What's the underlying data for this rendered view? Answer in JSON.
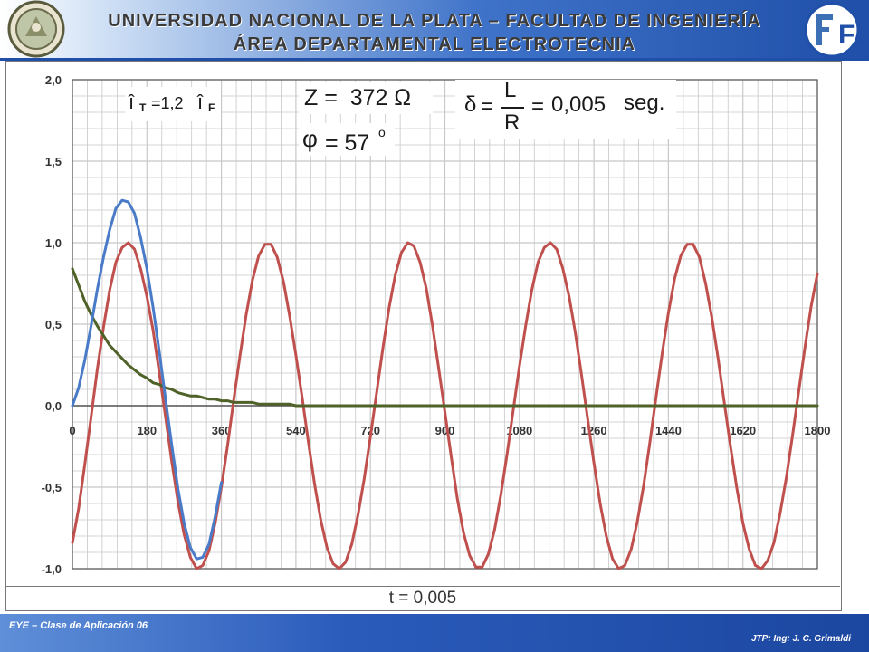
{
  "header": {
    "title_line1": "UNIVERSIDAD NACIONAL DE LA PLATA – FACULTAD DE  INGENIERÍA",
    "title_line2": "ÁREA DEPARTAMENTAL ELECTROTECNIA",
    "right_logo_text": "Fi"
  },
  "annotations": {
    "it_label": "î",
    "it_sub": "T",
    "it_eq": " =1,2 ",
    "if_label": "î",
    "if_sub": "F",
    "z_text": "Z =  372 Ω",
    "phi_symbol": "φ",
    "phi_value": " = 57",
    "phi_unit": "o",
    "delta_symbol": "δ",
    "delta_eq1": "=",
    "delta_num": "L",
    "delta_den": "R",
    "delta_eq2": "=",
    "delta_value": "0,005",
    "delta_unit": "seg."
  },
  "bottom_label": "t = 0,005",
  "footer": {
    "left": "EYE – Clase de Aplicación 06",
    "right": "JTP: Ing: J. C. Grimaldi"
  },
  "colors": {
    "total": "#4a7bc8",
    "forced": "#c0504d",
    "transient": "#4f6228",
    "grid": "#c8c8c8",
    "axis": "#555555"
  },
  "chart_data": {
    "type": "line",
    "x_range": [
      0,
      1800
    ],
    "y_range": [
      -1.0,
      2.0
    ],
    "x_ticks": [
      "0",
      "180",
      "360",
      "540",
      "720",
      "900",
      "1080",
      "1260",
      "1440",
      "1620",
      "1800"
    ],
    "y_ticks": [
      "2,0",
      "1,5",
      "1,0",
      "0,5",
      "0,0",
      "-0,5",
      "-1,0"
    ],
    "y_tick_values": [
      2.0,
      1.5,
      1.0,
      0.5,
      0.0,
      -0.5,
      -1.0
    ],
    "grid": true,
    "series": [
      {
        "key": "forced",
        "points": [
          [
            0,
            -0.84
          ],
          [
            15,
            -0.63
          ],
          [
            30,
            -0.36
          ],
          [
            45,
            -0.07
          ],
          [
            60,
            0.22
          ],
          [
            75,
            0.48
          ],
          [
            90,
            0.71
          ],
          [
            105,
            0.88
          ],
          [
            120,
            0.97
          ],
          [
            135,
            1.0
          ],
          [
            150,
            0.96
          ],
          [
            165,
            0.84
          ],
          [
            180,
            0.67
          ],
          [
            195,
            0.46
          ],
          [
            210,
            0.2
          ],
          [
            225,
            -0.07
          ],
          [
            240,
            -0.34
          ],
          [
            255,
            -0.59
          ],
          [
            270,
            -0.79
          ],
          [
            285,
            -0.93
          ],
          [
            300,
            -1.0
          ],
          [
            315,
            -0.98
          ],
          [
            330,
            -0.89
          ],
          [
            345,
            -0.72
          ],
          [
            360,
            -0.5
          ],
          [
            375,
            -0.24
          ],
          [
            390,
            0.04
          ],
          [
            405,
            0.31
          ],
          [
            420,
            0.56
          ],
          [
            435,
            0.77
          ],
          [
            450,
            0.92
          ],
          [
            465,
            0.99
          ],
          [
            480,
            0.99
          ],
          [
            495,
            0.91
          ],
          [
            510,
            0.76
          ],
          [
            525,
            0.55
          ],
          [
            540,
            0.31
          ],
          [
            555,
            0.05
          ],
          [
            570,
            -0.22
          ],
          [
            585,
            -0.48
          ],
          [
            600,
            -0.7
          ],
          [
            615,
            -0.87
          ],
          [
            630,
            -0.97
          ],
          [
            645,
            -1.0
          ],
          [
            660,
            -0.96
          ],
          [
            675,
            -0.85
          ],
          [
            690,
            -0.67
          ],
          [
            705,
            -0.45
          ],
          [
            720,
            -0.19
          ],
          [
            735,
            0.08
          ],
          [
            750,
            0.35
          ],
          [
            765,
            0.6
          ],
          [
            780,
            0.8
          ],
          [
            795,
            0.94
          ],
          [
            810,
            1.0
          ],
          [
            825,
            0.98
          ],
          [
            840,
            0.88
          ],
          [
            855,
            0.72
          ],
          [
            870,
            0.49
          ],
          [
            885,
            0.23
          ],
          [
            900,
            -0.04
          ],
          [
            915,
            -0.31
          ],
          [
            930,
            -0.57
          ],
          [
            945,
            -0.78
          ],
          [
            960,
            -0.92
          ],
          [
            975,
            -0.99
          ],
          [
            990,
            -0.99
          ],
          [
            1005,
            -0.91
          ],
          [
            1020,
            -0.76
          ],
          [
            1035,
            -0.55
          ],
          [
            1050,
            -0.3
          ],
          [
            1065,
            -0.03
          ],
          [
            1080,
            0.24
          ],
          [
            1095,
            0.49
          ],
          [
            1110,
            0.71
          ],
          [
            1125,
            0.88
          ],
          [
            1140,
            0.97
          ],
          [
            1155,
            1.0
          ],
          [
            1170,
            0.96
          ],
          [
            1185,
            0.84
          ],
          [
            1200,
            0.67
          ],
          [
            1215,
            0.45
          ],
          [
            1230,
            0.19
          ],
          [
            1245,
            -0.08
          ],
          [
            1260,
            -0.35
          ],
          [
            1275,
            -0.6
          ],
          [
            1290,
            -0.8
          ],
          [
            1305,
            -0.94
          ],
          [
            1320,
            -1.0
          ],
          [
            1335,
            -0.98
          ],
          [
            1350,
            -0.88
          ],
          [
            1365,
            -0.71
          ],
          [
            1380,
            -0.49
          ],
          [
            1395,
            -0.23
          ],
          [
            1410,
            0.05
          ],
          [
            1425,
            0.32
          ],
          [
            1440,
            0.57
          ],
          [
            1455,
            0.78
          ],
          [
            1470,
            0.92
          ],
          [
            1485,
            0.99
          ],
          [
            1500,
            0.99
          ],
          [
            1515,
            0.91
          ],
          [
            1530,
            0.75
          ],
          [
            1545,
            0.54
          ],
          [
            1560,
            0.29
          ],
          [
            1575,
            0.02
          ],
          [
            1590,
            -0.25
          ],
          [
            1605,
            -0.5
          ],
          [
            1620,
            -0.72
          ],
          [
            1635,
            -0.88
          ],
          [
            1650,
            -0.98
          ],
          [
            1665,
            -1.0
          ],
          [
            1680,
            -0.95
          ],
          [
            1695,
            -0.84
          ],
          [
            1710,
            -0.66
          ],
          [
            1725,
            -0.44
          ],
          [
            1740,
            -0.18
          ],
          [
            1755,
            0.09
          ],
          [
            1770,
            0.36
          ],
          [
            1785,
            0.61
          ],
          [
            1800,
            0.81
          ]
        ]
      },
      {
        "key": "transient",
        "points": [
          [
            0,
            0.84
          ],
          [
            15,
            0.74
          ],
          [
            30,
            0.64
          ],
          [
            45,
            0.56
          ],
          [
            60,
            0.49
          ],
          [
            75,
            0.43
          ],
          [
            90,
            0.37
          ],
          [
            105,
            0.33
          ],
          [
            120,
            0.29
          ],
          [
            135,
            0.25
          ],
          [
            150,
            0.22
          ],
          [
            165,
            0.19
          ],
          [
            180,
            0.17
          ],
          [
            195,
            0.14
          ],
          [
            210,
            0.13
          ],
          [
            225,
            0.11
          ],
          [
            240,
            0.1
          ],
          [
            255,
            0.08
          ],
          [
            270,
            0.07
          ],
          [
            285,
            0.06
          ],
          [
            300,
            0.06
          ],
          [
            315,
            0.05
          ],
          [
            330,
            0.04
          ],
          [
            345,
            0.04
          ],
          [
            360,
            0.03
          ],
          [
            375,
            0.03
          ],
          [
            390,
            0.02
          ],
          [
            405,
            0.02
          ],
          [
            420,
            0.02
          ],
          [
            435,
            0.02
          ],
          [
            450,
            0.01
          ],
          [
            465,
            0.01
          ],
          [
            480,
            0.01
          ],
          [
            495,
            0.01
          ],
          [
            510,
            0.01
          ],
          [
            525,
            0.01
          ],
          [
            540,
            0.0
          ],
          [
            1800,
            0.0
          ]
        ]
      },
      {
        "key": "total",
        "points": [
          [
            0,
            0.0
          ],
          [
            15,
            0.11
          ],
          [
            30,
            0.28
          ],
          [
            45,
            0.49
          ],
          [
            60,
            0.71
          ],
          [
            75,
            0.91
          ],
          [
            90,
            1.08
          ],
          [
            105,
            1.21
          ],
          [
            120,
            1.26
          ],
          [
            135,
            1.25
          ],
          [
            150,
            1.18
          ],
          [
            165,
            1.03
          ],
          [
            180,
            0.84
          ],
          [
            195,
            0.6
          ],
          [
            210,
            0.33
          ],
          [
            225,
            0.04
          ],
          [
            240,
            -0.24
          ],
          [
            255,
            -0.51
          ],
          [
            270,
            -0.72
          ],
          [
            285,
            -0.87
          ],
          [
            300,
            -0.94
          ],
          [
            315,
            -0.93
          ],
          [
            330,
            -0.85
          ],
          [
            345,
            -0.68
          ],
          [
            360,
            -0.47
          ]
        ]
      }
    ]
  }
}
